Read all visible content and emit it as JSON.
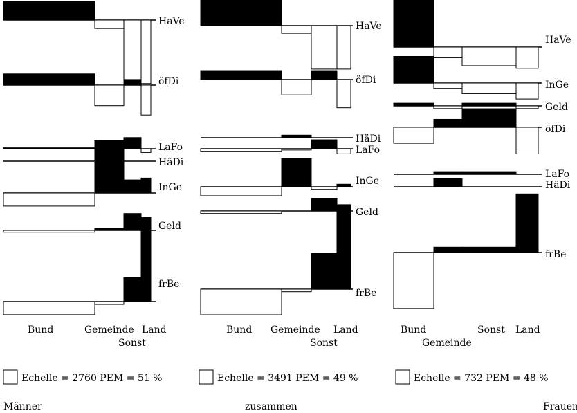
{
  "chart_data": {
    "type": "mosaic",
    "panels": [
      {
        "name": "Männer",
        "scale": "Echelle = 2760 PEM = 51 %",
        "x_labels": [
          "Bund",
          "Gemeinde",
          "Land",
          "Sonst"
        ],
        "columns": [
          "Bund",
          "Gemeinde",
          "Sonst",
          "Land"
        ],
        "rows": [
          {
            "label": "HaVe",
            "values": [
              -1,
              0.45,
              3.4,
              3.4
            ]
          },
          {
            "label": "öfDi",
            "values": [
              -0.6,
              1.1,
              -0.3,
              1.6
            ]
          },
          {
            "label": "LaFo",
            "values": [
              -0.05,
              -0.1,
              -0.6,
              0.2
            ]
          },
          {
            "label": "HäDi",
            "values": [
              0,
              0,
              0,
              0
            ]
          },
          {
            "label": "InGe",
            "values": [
              0.7,
              -2.8,
              -0.7,
              -0.8
            ]
          },
          {
            "label": "Geld",
            "values": [
              0.1,
              -0.1,
              -0.9,
              0
            ]
          },
          {
            "label": "frBe",
            "values": [
              0.7,
              0.15,
              -1.3,
              -4.5
            ]
          }
        ]
      },
      {
        "name": "zusammen",
        "scale": "Echelle = 3491 PEM = 49 %",
        "x_labels": [
          "Bund",
          "Gemeinde",
          "Land",
          "Sonst"
        ],
        "columns": [
          "Bund",
          "Gemeinde",
          "Sonst",
          "Land"
        ],
        "rows": [
          {
            "label": "HaVe",
            "values": [
              -1,
              0.3,
              1.7,
              1.7
            ]
          },
          {
            "label": "öfDi",
            "values": [
              -0.35,
              0.6,
              -0.35,
              1.1
            ]
          },
          {
            "label": "HäDi",
            "values": [
              0,
              -0.1,
              0,
              0
            ]
          },
          {
            "label": "LaFo",
            "values": [
              0.1,
              0.05,
              -0.35,
              0.2
            ]
          },
          {
            "label": "InGe",
            "values": [
              0.35,
              -1.1,
              0.1,
              -0.1
            ]
          },
          {
            "label": "Geld",
            "values": [
              0.1,
              0,
              -0.5,
              0
            ]
          },
          {
            "label": "frBe",
            "values": [
              1,
              0.1,
              -1.4,
              -3.3
            ]
          }
        ]
      },
      {
        "name": "Frauen",
        "scale": "Echelle = 732 PEM = 48 %",
        "x_labels": [
          "Bund",
          "Gemeinde",
          "Sonst",
          "Land"
        ],
        "columns": [
          "Bund",
          "Gemeinde",
          "Sonst",
          "Land"
        ],
        "rows": [
          {
            "label": "HaVe",
            "values": [
              -1,
              0.2,
              0.35,
              0.4
            ]
          },
          {
            "label": "InGe",
            "values": [
              -0.5,
              0.1,
              0.2,
              0.3
            ]
          },
          {
            "label": "Geld",
            "values": [
              -0.05,
              0.05,
              -0.05,
              0.05
            ]
          },
          {
            "label": "öfDi",
            "values": [
              0.3,
              -0.15,
              -0.35,
              0.5
            ]
          },
          {
            "label": "LaFo",
            "values": [
              0,
              -0.05,
              -0.05,
              0
            ]
          },
          {
            "label": "HäDi",
            "values": [
              0,
              -0.15,
              0,
              0
            ]
          },
          {
            "label": "frBe",
            "values": [
              1.05,
              -0.1,
              -0.1,
              -1.1
            ]
          }
        ]
      }
    ]
  }
}
